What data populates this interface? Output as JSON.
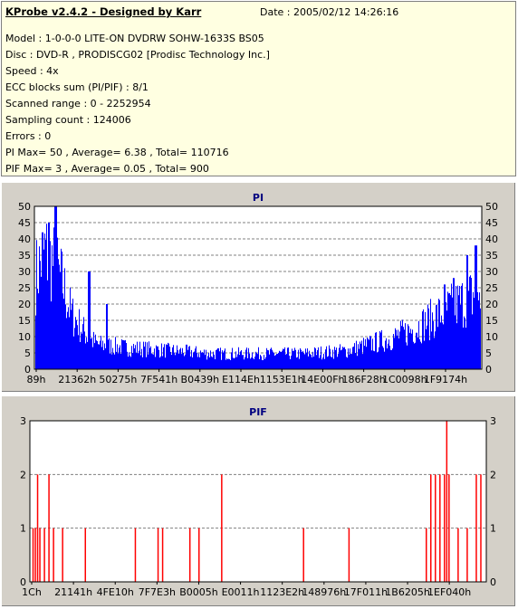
{
  "header": {
    "title": "KProbe v2.4.2 - Designed by Karr",
    "date": "Date : 2005/02/12 14:26:16",
    "lines": [
      "Model : 1-0-0-0 LITE-ON DVDRW SOHW-1633S BS05",
      "Disc : DVD-R , PRODISCG02 [Prodisc Technology Inc.]",
      "Speed : 4x",
      "ECC blocks sum (PI/PIF) : 8/1",
      "Scanned range : 0 - 2252954",
      "Sampling count : 124006",
      "Errors : 0",
      "PI Max= 50 , Average= 6.38 , Total= 110716",
      "PIF Max= 3 , Average= 0.05 , Total= 900"
    ]
  },
  "chart_data": [
    {
      "type": "bar",
      "title": "PI",
      "ylim": [
        0,
        50
      ],
      "yticks": [
        0,
        5,
        10,
        15,
        20,
        25,
        30,
        35,
        40,
        45,
        50
      ],
      "xtick_labels": [
        "89h",
        "21362h",
        "50275h",
        "7F541h",
        "B0439h",
        "E114Eh",
        "1153E1h",
        "14E00Fh",
        "186F28h",
        "1C0098h",
        "1F9174h"
      ],
      "grid": true,
      "color": "#0000ff",
      "profile": [
        [
          0,
          30
        ],
        [
          0.02,
          38
        ],
        [
          0.04,
          34
        ],
        [
          0.06,
          28
        ],
        [
          0.08,
          18
        ],
        [
          0.1,
          14
        ],
        [
          0.12,
          10
        ],
        [
          0.14,
          8
        ],
        [
          0.2,
          7
        ],
        [
          0.3,
          6
        ],
        [
          0.4,
          5
        ],
        [
          0.5,
          5
        ],
        [
          0.6,
          5
        ],
        [
          0.7,
          6
        ],
        [
          0.75,
          8
        ],
        [
          0.8,
          10
        ],
        [
          0.85,
          13
        ],
        [
          0.9,
          17
        ],
        [
          0.95,
          21
        ],
        [
          1.0,
          25
        ]
      ],
      "peaks": [
        [
          0.045,
          50
        ],
        [
          0.03,
          45
        ],
        [
          0.015,
          42
        ],
        [
          0.99,
          38
        ],
        [
          0.97,
          35
        ],
        [
          0.12,
          30
        ],
        [
          0.16,
          20
        ],
        [
          0.94,
          28
        ],
        [
          0.92,
          26
        ]
      ]
    },
    {
      "type": "bar",
      "title": "PIF",
      "ylim": [
        0,
        3
      ],
      "yticks": [
        0,
        1,
        2,
        3
      ],
      "xtick_labels": [
        "1Ch",
        "21141h",
        "4FE10h",
        "7F7E3h",
        "B0005h",
        "E0011h",
        "1123E2h",
        "148976h",
        "17F011h",
        "1B6205h",
        "1EF040h"
      ],
      "grid": true,
      "color": "#ff0000",
      "values_at": [
        [
          0.005,
          1
        ],
        [
          0.01,
          1
        ],
        [
          0.015,
          2
        ],
        [
          0.02,
          1
        ],
        [
          0.03,
          1
        ],
        [
          0.04,
          2
        ],
        [
          0.05,
          1
        ],
        [
          0.07,
          1
        ],
        [
          0.12,
          1
        ],
        [
          0.23,
          1
        ],
        [
          0.28,
          1
        ],
        [
          0.29,
          1
        ],
        [
          0.35,
          1
        ],
        [
          0.37,
          1
        ],
        [
          0.42,
          2
        ],
        [
          0.6,
          1
        ],
        [
          0.7,
          1
        ],
        [
          0.87,
          1
        ],
        [
          0.88,
          2
        ],
        [
          0.89,
          2
        ],
        [
          0.9,
          2
        ],
        [
          0.91,
          2
        ],
        [
          0.915,
          3
        ],
        [
          0.92,
          2
        ],
        [
          0.94,
          1
        ],
        [
          0.96,
          1
        ],
        [
          0.98,
          2
        ],
        [
          0.99,
          2
        ]
      ]
    }
  ]
}
